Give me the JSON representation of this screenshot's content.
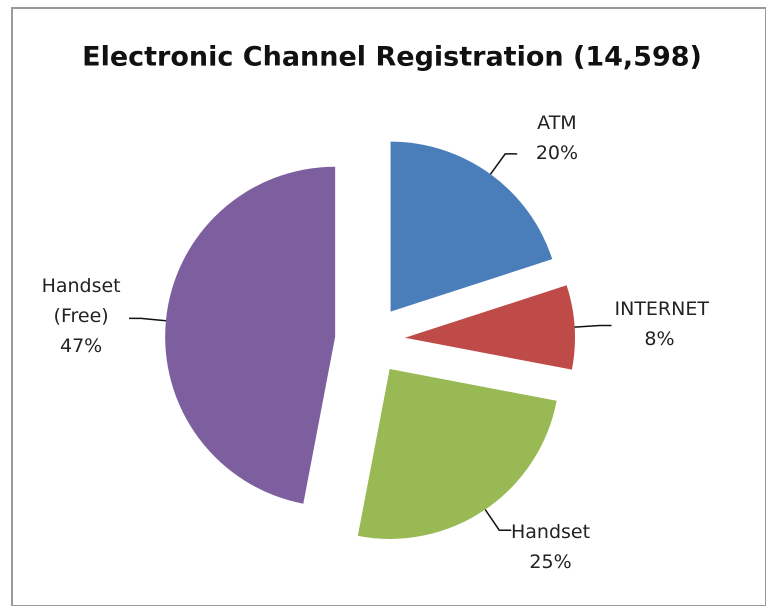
{
  "chart_data": {
    "type": "pie",
    "title": "Electronic Channel Registration (14,598)",
    "categories": [
      "ATM",
      "INTERNET",
      "Handset",
      "Handset (Free)"
    ],
    "values": [
      20,
      8,
      25,
      47
    ],
    "value_labels": [
      "20%",
      "8%",
      "25%",
      "47%"
    ],
    "colors": [
      "#4a7ebb",
      "#be4b48",
      "#98b954",
      "#7d5fa0"
    ],
    "exploded": true
  }
}
